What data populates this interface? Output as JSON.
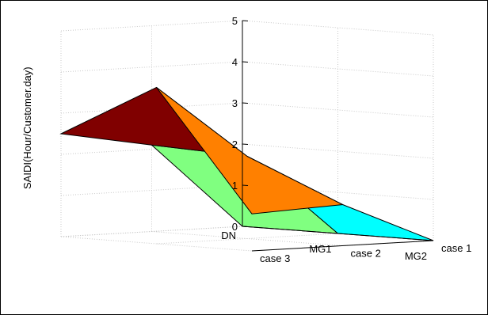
{
  "chart_data": {
    "type": "surface",
    "title": "",
    "xlabel": "",
    "ylabel": "",
    "zlabel": "SAIDI(Hour/Customer.day)",
    "x_categories": [
      "DN",
      "MG1",
      "MG2"
    ],
    "y_categories": [
      "case 1",
      "case 2",
      "case 3"
    ],
    "zlim": [
      0,
      5
    ],
    "z_ticks": [
      "0",
      "1",
      "2",
      "3",
      "4",
      "5"
    ],
    "grid": true,
    "z_values": [
      [
        0.0,
        0.0,
        0.0
      ],
      [
        2.1,
        2.0,
        1.0
      ],
      [
        2.5,
        3.8,
        0.9
      ]
    ],
    "cell_colors": [
      [
        "#80FF80",
        "#00FFFF"
      ],
      [
        "#800000",
        "#FF8000"
      ]
    ]
  }
}
